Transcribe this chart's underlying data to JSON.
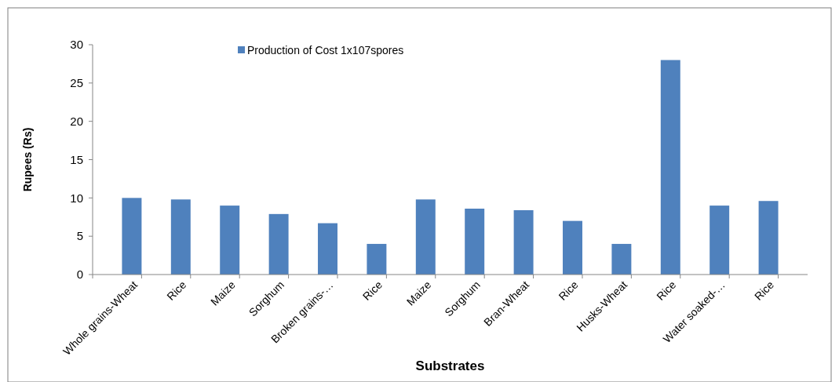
{
  "chart_data": {
    "type": "bar",
    "xlabel": "Substrates",
    "ylabel": "Rupees (Rs)",
    "categories": [
      "Whole grains-Wheat",
      "Rice",
      "Maize",
      "Sorghum",
      "Broken grains-…",
      "Rice",
      "Maize",
      "Sorghum",
      "Bran-Wheat",
      "Rice",
      "Husks-Wheat",
      "Rice",
      "Water soaked-…",
      "Rice"
    ],
    "series": [
      {
        "name": "Production of Cost 1x107spores",
        "color": "#4f81bd",
        "values": [
          10,
          9.8,
          9,
          7.9,
          6.7,
          4,
          9.8,
          8.6,
          8.4,
          7,
          4,
          28,
          9,
          9.6
        ]
      }
    ],
    "ylim": [
      0,
      30
    ],
    "yticks": [
      0,
      5,
      10,
      15,
      20,
      25,
      30
    ],
    "grid": false,
    "legend": "top"
  }
}
